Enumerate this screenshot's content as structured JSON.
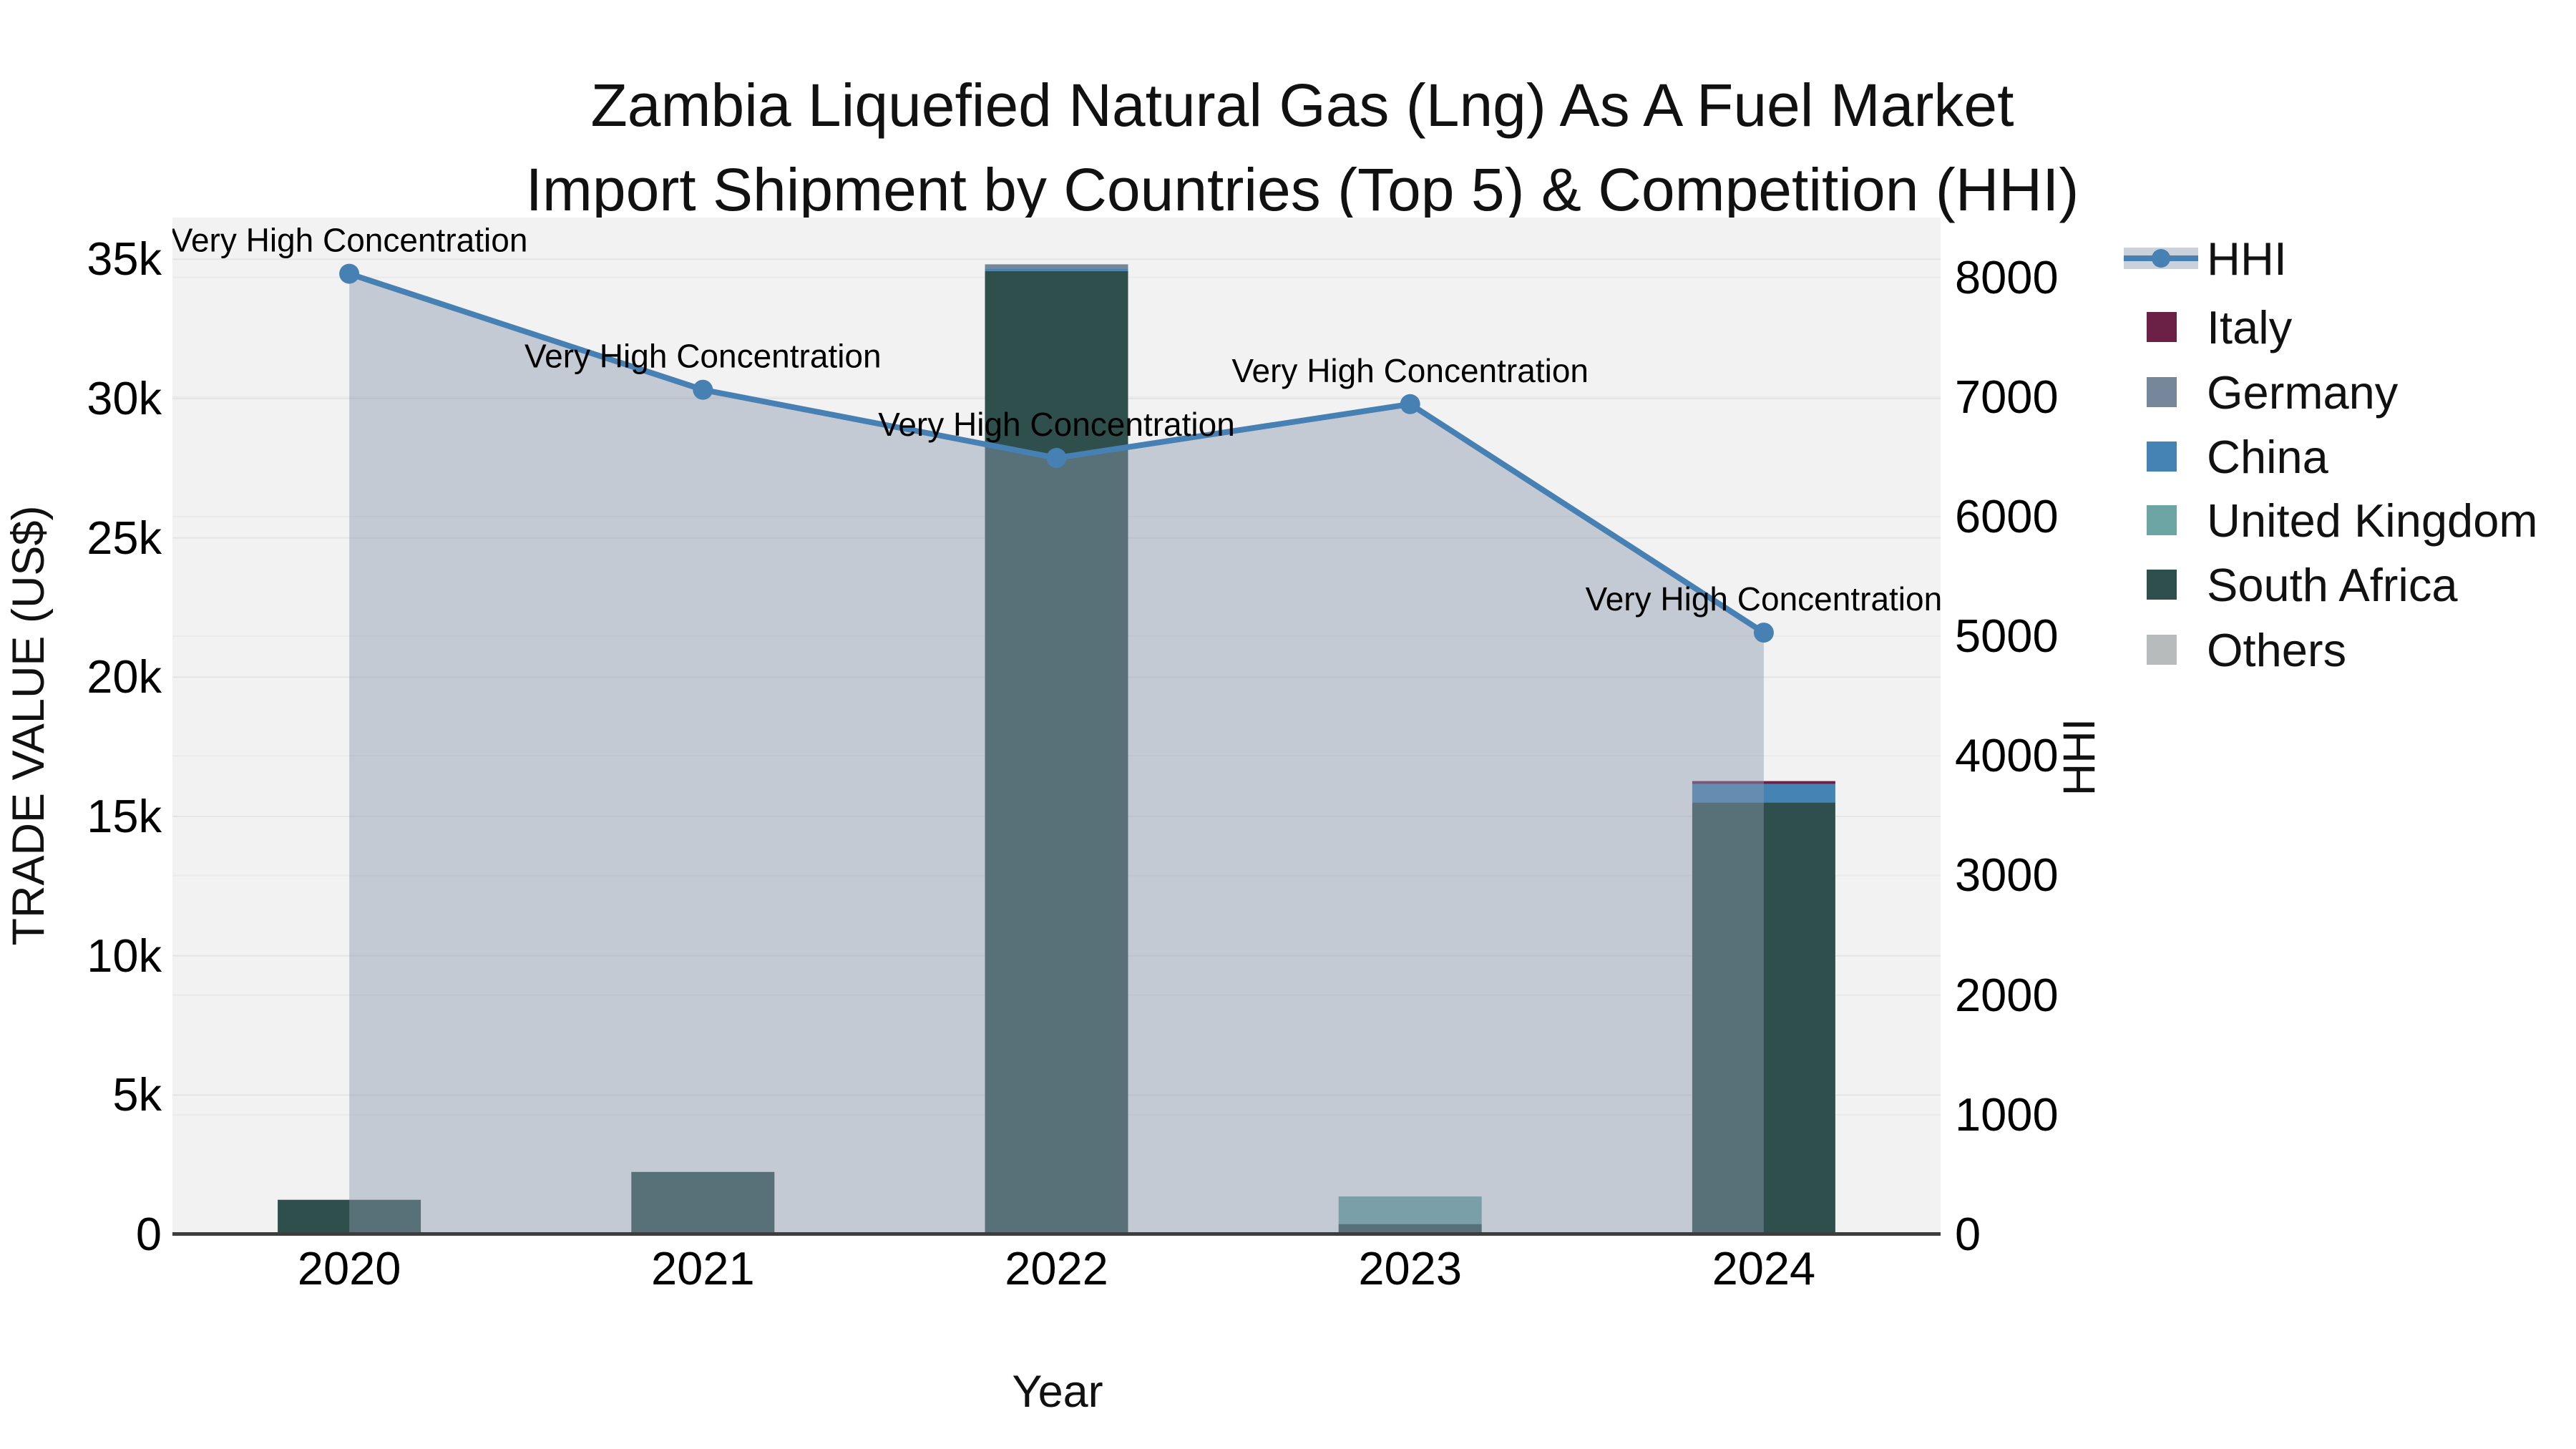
{
  "title": {
    "line1": "Zambia Liquefied Natural Gas (Lng) As A Fuel Market",
    "line2": "Import Shipment by Countries (Top 5) & Competition (HHI)"
  },
  "axes": {
    "left": {
      "title": "TRADE VALUE (US$)",
      "tick_labels": [
        "0",
        "5k",
        "10k",
        "15k",
        "20k",
        "25k",
        "30k",
        "35k"
      ],
      "tick_values": [
        0,
        5000,
        10000,
        15000,
        20000,
        25000,
        30000,
        35000
      ],
      "range": [
        0,
        36500
      ]
    },
    "right": {
      "title": "HHI",
      "tick_labels": [
        "0",
        "1000",
        "2000",
        "3000",
        "4000",
        "5000",
        "6000",
        "7000",
        "8000"
      ],
      "tick_values": [
        0,
        1000,
        2000,
        3000,
        4000,
        5000,
        6000,
        7000,
        8000
      ],
      "range": [
        0,
        8500
      ]
    },
    "x": {
      "title": "Year",
      "categories": [
        "2020",
        "2021",
        "2022",
        "2023",
        "2024"
      ]
    }
  },
  "chart_data": {
    "type": "combo-stacked-bar-line",
    "categories": [
      "2020",
      "2021",
      "2022",
      "2023",
      "2024"
    ],
    "bar_axis": "left",
    "bar_series": [
      {
        "name": "South Africa",
        "color": "#2E4F4B",
        "values": [
          1240,
          2240,
          34580,
          370,
          15500
        ]
      },
      {
        "name": "United Kingdom",
        "color": "#6CA5A3",
        "values": [
          0,
          0,
          0,
          990,
          0
        ]
      },
      {
        "name": "China",
        "color": "#4583B5",
        "values": [
          0,
          0,
          85,
          0,
          670
        ]
      },
      {
        "name": "Germany",
        "color": "#76879B",
        "values": [
          0,
          0,
          155,
          0,
          0
        ]
      },
      {
        "name": "Italy",
        "color": "#6B2145",
        "values": [
          0,
          0,
          0,
          0,
          100
        ]
      },
      {
        "name": "Others",
        "color": "#B7BBBB",
        "values": [
          0,
          0,
          0,
          0,
          0
        ]
      }
    ],
    "line_series": {
      "name": "HHI",
      "axis": "right",
      "color": "#4780b2",
      "area_color": "rgba(140,153,175,0.45)",
      "values": [
        8030,
        7060,
        6490,
        6940,
        5030
      ]
    },
    "annotations": [
      "Very High Concentration",
      "Very High Concentration",
      "Very High Concentration",
      "Very High Concentration",
      "Very High Concentration"
    ],
    "grid": {
      "left_color": "#e4e4e5",
      "right_color": "#eaeaea"
    },
    "legend_position": "right"
  },
  "legend": {
    "items": [
      {
        "label": "HHI",
        "type": "line-area",
        "color": "#4780b2"
      },
      {
        "label": "Italy",
        "type": "swatch",
        "color": "#6B2145"
      },
      {
        "label": "Germany",
        "type": "swatch",
        "color": "#76879B"
      },
      {
        "label": "China",
        "type": "swatch",
        "color": "#4583B5"
      },
      {
        "label": "United Kingdom",
        "type": "swatch",
        "color": "#6CA5A3"
      },
      {
        "label": "South Africa",
        "type": "swatch",
        "color": "#2E4F4B"
      },
      {
        "label": "Others",
        "type": "swatch",
        "color": "#B7BBBB"
      }
    ]
  },
  "colors": {
    "plot_bg": "#f2f2f3",
    "axis_line": "#3d3d3d",
    "annotation_text": "#000000"
  }
}
